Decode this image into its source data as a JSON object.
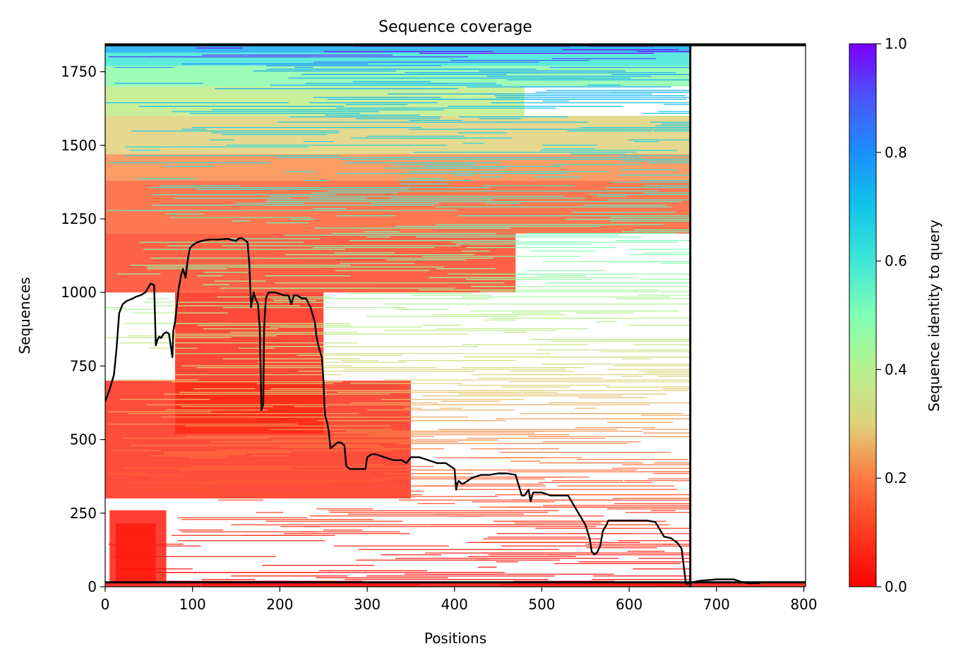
{
  "chart_data": {
    "type": "heatmap",
    "title": "Sequence coverage",
    "xlabel": "Positions",
    "ylabel": "Sequences",
    "xlim": [
      0,
      802
    ],
    "ylim": [
      0,
      1845
    ],
    "xticks": [
      0,
      100,
      200,
      300,
      400,
      500,
      600,
      700,
      800
    ],
    "yticks": [
      0,
      250,
      500,
      750,
      1000,
      1250,
      1500,
      1750
    ],
    "grid": false,
    "colormap": "rainbow_r",
    "colorbar": {
      "label": "Sequence identity to query",
      "range": [
        0,
        1
      ],
      "ticks": [
        "0.0",
        "0.2",
        "0.4",
        "0.6",
        "0.8",
        "1.0"
      ]
    },
    "segment_boundaries": [
      670
    ],
    "coverage_line": {
      "color": "#000000",
      "x": [
        0,
        5,
        10,
        13,
        16,
        20,
        24,
        28,
        32,
        35,
        40,
        46,
        52,
        56,
        58,
        60,
        62,
        64,
        67,
        70,
        73,
        77,
        78,
        80,
        84,
        87,
        89,
        92,
        95,
        97,
        100,
        105,
        110,
        115,
        120,
        130,
        140,
        150,
        152,
        156,
        160,
        163,
        165,
        167,
        170,
        172,
        175,
        177,
        179,
        181,
        182,
        184,
        187,
        190,
        195,
        200,
        205,
        210,
        213,
        216,
        220,
        225,
        230,
        235,
        240,
        242,
        244,
        246,
        248,
        250,
        251,
        252,
        254,
        256,
        258,
        262,
        266,
        270,
        274,
        276,
        280,
        290,
        298,
        300,
        305,
        310,
        320,
        330,
        340,
        345,
        350,
        360,
        370,
        380,
        390,
        400,
        402,
        403,
        405,
        408,
        410,
        415,
        420,
        425,
        430,
        440,
        450,
        460,
        470,
        477,
        478,
        480,
        485,
        487,
        490,
        492,
        495,
        500,
        510,
        520,
        530,
        540,
        550,
        552,
        555,
        557,
        560,
        563,
        567,
        570,
        574,
        576,
        580,
        590,
        600,
        610,
        620,
        630,
        640,
        648,
        650,
        655,
        660,
        665,
        668,
        670,
        671,
        680,
        700,
        720,
        730,
        735,
        740,
        745,
        750,
        760,
        780,
        800,
        802
      ],
      "y": [
        630,
        670,
        720,
        810,
        930,
        960,
        970,
        975,
        980,
        985,
        990,
        1000,
        1030,
        1025,
        820,
        840,
        850,
        845,
        860,
        865,
        860,
        780,
        870,
        900,
        1010,
        1060,
        1080,
        1050,
        1120,
        1150,
        1160,
        1170,
        1175,
        1178,
        1180,
        1180,
        1182,
        1175,
        1182,
        1185,
        1178,
        1170,
        1100,
        950,
        1000,
        980,
        960,
        880,
        600,
        620,
        880,
        980,
        1000,
        1000,
        1000,
        995,
        990,
        990,
        960,
        990,
        990,
        980,
        980,
        950,
        900,
        850,
        820,
        800,
        780,
        700,
        620,
        580,
        560,
        530,
        470,
        480,
        490,
        490,
        480,
        410,
        400,
        400,
        400,
        440,
        450,
        450,
        440,
        430,
        430,
        420,
        440,
        440,
        430,
        420,
        420,
        400,
        330,
        350,
        360,
        350,
        350,
        360,
        370,
        375,
        380,
        380,
        385,
        385,
        380,
        310,
        310,
        310,
        330,
        290,
        320,
        320,
        320,
        320,
        310,
        310,
        310,
        260,
        210,
        190,
        160,
        120,
        110,
        115,
        140,
        190,
        210,
        225,
        225,
        225,
        225,
        225,
        225,
        220,
        170,
        165,
        160,
        150,
        130,
        10,
        12,
        12,
        14,
        20,
        25,
        25,
        15,
        12,
        12,
        12,
        12
      ]
    },
    "coverage_bands": [
      {
        "y0": 0,
        "y1": 15,
        "x0": 0,
        "x1": 802,
        "identity": 0.02
      },
      {
        "y0": 15,
        "y1": 215,
        "x0": 12,
        "x1": 58,
        "identity": 0.02
      },
      {
        "y0": 15,
        "y1": 260,
        "x0": 5,
        "x1": 70,
        "identity": 0.05
      },
      {
        "y0": 300,
        "y1": 700,
        "x0": 0,
        "x1": 350,
        "identity": 0.08
      },
      {
        "y0": 520,
        "y1": 1000,
        "x0": 80,
        "x1": 250,
        "identity": 0.07
      },
      {
        "y0": 1000,
        "y1": 1200,
        "x0": 0,
        "x1": 470,
        "identity": 0.12
      },
      {
        "y0": 1200,
        "y1": 1380,
        "x0": 0,
        "x1": 670,
        "identity": 0.16
      },
      {
        "y0": 1380,
        "y1": 1470,
        "x0": 0,
        "x1": 670,
        "identity": 0.22
      },
      {
        "y0": 1470,
        "y1": 1600,
        "x0": 0,
        "x1": 670,
        "identity": 0.3
      },
      {
        "y0": 1600,
        "y1": 1700,
        "x0": 0,
        "x1": 480,
        "identity": 0.38
      },
      {
        "y0": 1700,
        "y1": 1770,
        "x0": 0,
        "x1": 670,
        "identity": 0.48
      },
      {
        "y0": 1770,
        "y1": 1815,
        "x0": 0,
        "x1": 670,
        "identity": 0.6
      },
      {
        "y0": 1815,
        "y1": 1845,
        "x0": 0,
        "x1": 670,
        "identity": 0.75
      }
    ]
  }
}
